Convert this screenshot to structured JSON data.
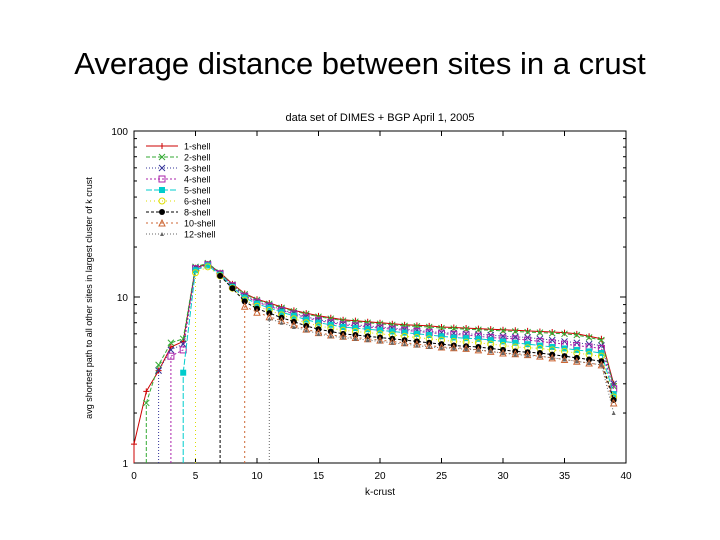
{
  "slide": {
    "title": "Average distance between sites in a crust"
  },
  "chart_data": {
    "type": "line",
    "title": "data set of DIMES + BGP April 1, 2005",
    "xlabel": "k-crust",
    "ylabel": "avg shortest path to all other sites in largest cluster of k crust",
    "xlim": [
      0,
      40
    ],
    "ylim": [
      1,
      100
    ],
    "yscale": "log",
    "x_ticks": [
      0,
      5,
      10,
      15,
      20,
      25,
      30,
      35,
      40
    ],
    "y_ticks": [
      1,
      10,
      100
    ],
    "legend_position": "top-left",
    "grid": false,
    "series": [
      {
        "name": "1-shell",
        "color": "#cc0000",
        "marker": "plus",
        "dash": "",
        "x": [
          0,
          1,
          2,
          3,
          4,
          5,
          6,
          7,
          8,
          9,
          10,
          11,
          12,
          13,
          14,
          15,
          16,
          17,
          18,
          19,
          20,
          21,
          22,
          23,
          24,
          25,
          26,
          27,
          28,
          29,
          30,
          31,
          32,
          33,
          34,
          35,
          36,
          37,
          38,
          39
        ],
        "y": [
          1.3,
          2.7,
          3.6,
          5.0,
          5.4,
          15.0,
          15.8,
          14.0,
          12.0,
          10.5,
          9.7,
          9.2,
          8.7,
          8.3,
          8.0,
          7.7,
          7.5,
          7.3,
          7.2,
          7.1,
          7.0,
          6.9,
          6.8,
          6.75,
          6.7,
          6.6,
          6.55,
          6.5,
          6.45,
          6.4,
          6.35,
          6.3,
          6.25,
          6.2,
          6.15,
          6.1,
          6.0,
          5.8,
          5.6,
          3.0
        ]
      },
      {
        "name": "2-shell",
        "color": "#33aa33",
        "marker": "x",
        "dash": "4,2",
        "x": [
          1,
          2,
          3,
          4,
          5,
          6,
          7,
          8,
          9,
          10,
          11,
          12,
          13,
          14,
          15,
          16,
          17,
          18,
          19,
          20,
          21,
          22,
          23,
          24,
          25,
          26,
          27,
          28,
          29,
          30,
          31,
          32,
          33,
          34,
          35,
          36,
          37,
          38,
          39
        ],
        "y": [
          2.3,
          3.9,
          5.3,
          5.6,
          15.2,
          16.0,
          14.0,
          11.9,
          10.4,
          9.6,
          9.1,
          8.6,
          8.2,
          7.9,
          7.6,
          7.4,
          7.2,
          7.1,
          7.0,
          6.9,
          6.8,
          6.7,
          6.65,
          6.6,
          6.5,
          6.45,
          6.4,
          6.35,
          6.3,
          6.25,
          6.2,
          6.15,
          6.1,
          6.05,
          6.0,
          5.9,
          5.7,
          5.5,
          2.9
        ]
      },
      {
        "name": "3-shell",
        "color": "#333399",
        "marker": "x",
        "dash": "1,2",
        "x": [
          2,
          3,
          4,
          5,
          6,
          7,
          8,
          9,
          10,
          11,
          12,
          13,
          14,
          15,
          16,
          17,
          18,
          19,
          20,
          21,
          22,
          23,
          24,
          25,
          26,
          27,
          28,
          29,
          30,
          31,
          32,
          33,
          34,
          35,
          36,
          37,
          38,
          39
        ],
        "y": [
          3.6,
          4.8,
          5.2,
          15.0,
          15.8,
          13.9,
          11.8,
          10.2,
          9.4,
          8.9,
          8.4,
          8.0,
          7.6,
          7.3,
          7.1,
          6.9,
          6.8,
          6.7,
          6.6,
          6.5,
          6.4,
          6.3,
          6.2,
          6.1,
          6.05,
          6.0,
          5.95,
          5.9,
          5.8,
          5.75,
          5.7,
          5.6,
          5.5,
          5.4,
          5.3,
          5.2,
          5.1,
          3.0
        ]
      },
      {
        "name": "4-shell",
        "color": "#aa22aa",
        "marker": "square",
        "dash": "2,2",
        "x": [
          3,
          4,
          5,
          6,
          7,
          8,
          9,
          10,
          11,
          12,
          13,
          14,
          15,
          16,
          17,
          18,
          19,
          20,
          21,
          22,
          23,
          24,
          25,
          26,
          27,
          28,
          29,
          30,
          31,
          32,
          33,
          34,
          35,
          36,
          37,
          38,
          39
        ],
        "y": [
          4.4,
          4.8,
          14.8,
          15.6,
          13.8,
          11.7,
          10.1,
          9.3,
          8.8,
          8.3,
          7.9,
          7.5,
          7.2,
          7.0,
          6.8,
          6.7,
          6.6,
          6.5,
          6.4,
          6.3,
          6.2,
          6.1,
          6.0,
          5.95,
          5.9,
          5.8,
          5.7,
          5.65,
          5.6,
          5.5,
          5.4,
          5.3,
          5.2,
          5.1,
          5.0,
          4.9,
          2.8
        ]
      },
      {
        "name": "5-shell",
        "color": "#00cccc",
        "marker": "filled-square",
        "dash": "6,2",
        "x": [
          4,
          5,
          6,
          7,
          8,
          9,
          10,
          11,
          12,
          13,
          14,
          15,
          16,
          17,
          18,
          19,
          20,
          21,
          22,
          23,
          24,
          25,
          26,
          27,
          28,
          29,
          30,
          31,
          32,
          33,
          34,
          35,
          36,
          37,
          38,
          39
        ],
        "y": [
          3.5,
          14.5,
          15.5,
          13.6,
          11.5,
          9.9,
          9.1,
          8.6,
          8.1,
          7.7,
          7.3,
          7.0,
          6.8,
          6.6,
          6.5,
          6.4,
          6.3,
          6.2,
          6.1,
          6.0,
          5.9,
          5.8,
          5.7,
          5.65,
          5.6,
          5.5,
          5.4,
          5.3,
          5.2,
          5.1,
          5.0,
          4.9,
          4.8,
          4.7,
          4.6,
          2.6
        ]
      },
      {
        "name": "6-shell",
        "color": "#dddd00",
        "marker": "circle",
        "dash": "1,3",
        "x": [
          5,
          6,
          7,
          8,
          9,
          10,
          11,
          12,
          13,
          14,
          15,
          16,
          17,
          18,
          19,
          20,
          21,
          22,
          23,
          24,
          25,
          26,
          27,
          28,
          29,
          30,
          31,
          32,
          33,
          34,
          35,
          36,
          37,
          38,
          39
        ],
        "y": [
          14.0,
          15.2,
          13.4,
          11.3,
          9.6,
          8.8,
          8.3,
          7.8,
          7.4,
          7.0,
          6.7,
          6.5,
          6.3,
          6.2,
          6.1,
          6.0,
          5.9,
          5.8,
          5.7,
          5.6,
          5.5,
          5.4,
          5.35,
          5.3,
          5.2,
          5.1,
          5.0,
          4.95,
          4.9,
          4.8,
          4.7,
          4.6,
          4.5,
          4.4,
          2.5
        ]
      },
      {
        "name": "8-shell",
        "color": "#000000",
        "marker": "filled-circle",
        "dash": "3,2",
        "x": [
          7,
          8,
          9,
          10,
          11,
          12,
          13,
          14,
          15,
          16,
          17,
          18,
          19,
          20,
          21,
          22,
          23,
          24,
          25,
          26,
          27,
          28,
          29,
          30,
          31,
          32,
          33,
          34,
          35,
          36,
          37,
          38,
          39
        ],
        "y": [
          13.4,
          11.3,
          9.4,
          8.5,
          8.0,
          7.5,
          7.1,
          6.7,
          6.4,
          6.2,
          6.0,
          5.9,
          5.8,
          5.7,
          5.6,
          5.5,
          5.4,
          5.3,
          5.2,
          5.1,
          5.05,
          5.0,
          4.9,
          4.8,
          4.7,
          4.65,
          4.6,
          4.5,
          4.4,
          4.3,
          4.2,
          4.1,
          2.4
        ]
      },
      {
        "name": "10-shell",
        "color": "#cc6633",
        "marker": "triangle",
        "dash": "2,3",
        "x": [
          9,
          10,
          11,
          12,
          13,
          14,
          15,
          16,
          17,
          18,
          19,
          20,
          21,
          22,
          23,
          24,
          25,
          26,
          27,
          28,
          29,
          30,
          31,
          32,
          33,
          34,
          35,
          36,
          37,
          38,
          39
        ],
        "y": [
          8.8,
          8.1,
          7.6,
          7.2,
          6.8,
          6.4,
          6.1,
          5.9,
          5.8,
          5.7,
          5.6,
          5.5,
          5.4,
          5.3,
          5.2,
          5.1,
          5.0,
          4.95,
          4.9,
          4.8,
          4.7,
          4.6,
          4.55,
          4.5,
          4.4,
          4.3,
          4.2,
          4.1,
          4.0,
          3.9,
          2.3
        ]
      },
      {
        "name": "12-shell",
        "color": "#666666",
        "marker": "small-triangle",
        "dash": "1,2",
        "x": [
          11,
          12,
          13,
          14,
          15,
          16,
          17,
          18,
          19,
          20,
          21,
          22,
          23,
          24,
          25,
          26,
          27,
          28,
          29,
          30,
          31,
          32,
          33,
          34,
          35,
          36,
          37,
          38,
          39
        ],
        "y": [
          7.4,
          7.0,
          6.6,
          6.3,
          6.0,
          5.8,
          5.7,
          5.6,
          5.5,
          5.4,
          5.3,
          5.2,
          5.1,
          5.0,
          4.95,
          4.9,
          4.85,
          4.8,
          4.7,
          4.6,
          4.5,
          4.45,
          4.4,
          4.3,
          4.2,
          4.1,
          4.0,
          3.9,
          2.0
        ]
      }
    ]
  }
}
